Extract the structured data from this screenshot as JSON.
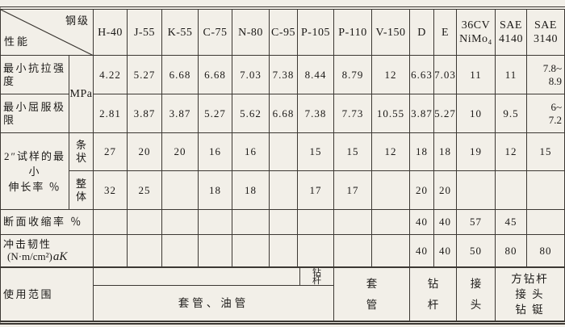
{
  "corner": {
    "top_right_label": "钢级",
    "bottom_left_label": "性能"
  },
  "headers": [
    "H-40",
    "J-55",
    "K-55",
    "C-75",
    "N-80",
    "C-95",
    "P-105",
    "P-110",
    "V-150",
    "D",
    "E",
    "36CV\nNiMo₄",
    "SAE\n4140",
    "SAE\n3140"
  ],
  "rows": {
    "tensile": {
      "label": "最小抗拉强度",
      "unit": "MPa",
      "values": [
        "4.22",
        "5.27",
        "6.68",
        "6.68",
        "7.03",
        "7.38",
        "8.44",
        "8.79",
        "12",
        "6.63",
        "7.03",
        "11",
        "11",
        "7.8~\n8.9"
      ]
    },
    "yield": {
      "label": "最小屈服极限",
      "values": [
        "2.81",
        "3.87",
        "3.87",
        "5.27",
        "5.62",
        "6.68",
        "7.38",
        "7.73",
        "10.55",
        "3.87",
        "5.27",
        "10",
        "9.5",
        "6~\n7.2"
      ]
    },
    "elongation": {
      "label": "2″试样的最小\n伸长率 ％",
      "sub_strip": "条\n状",
      "sub_body": "整\n体",
      "strip_values": [
        "27",
        "20",
        "20",
        "16",
        "16",
        "",
        "15",
        "15",
        "12",
        "18",
        "18",
        "19",
        "12",
        "15"
      ],
      "body_values": [
        "32",
        "25",
        "",
        "18",
        "18",
        "",
        "17",
        "17",
        "",
        "20",
        "20",
        "",
        "",
        ""
      ]
    },
    "reduction": {
      "label": "断面收缩率 ％",
      "values": [
        "",
        "",
        "",
        "",
        "",
        "",
        "",
        "",
        "",
        "40",
        "40",
        "57",
        "45",
        ""
      ]
    },
    "impact": {
      "label_line1": "冲击韧性",
      "label_unit": "(N·m/cm²)",
      "label_suffix": "aK",
      "values": [
        "",
        "",
        "",
        "",
        "",
        "",
        "",
        "",
        "",
        "40",
        "40",
        "50",
        "80",
        "80"
      ]
    },
    "usage": {
      "label": "使用范围",
      "drill_pipe_top": "钻\n杆",
      "casing_tubing": "套管、油管",
      "casing": "套\n管",
      "drill_pipe": "钻\n杆",
      "joint": "接\n头",
      "kelly": "方钻杆\n接 头\n钻 铤"
    }
  }
}
